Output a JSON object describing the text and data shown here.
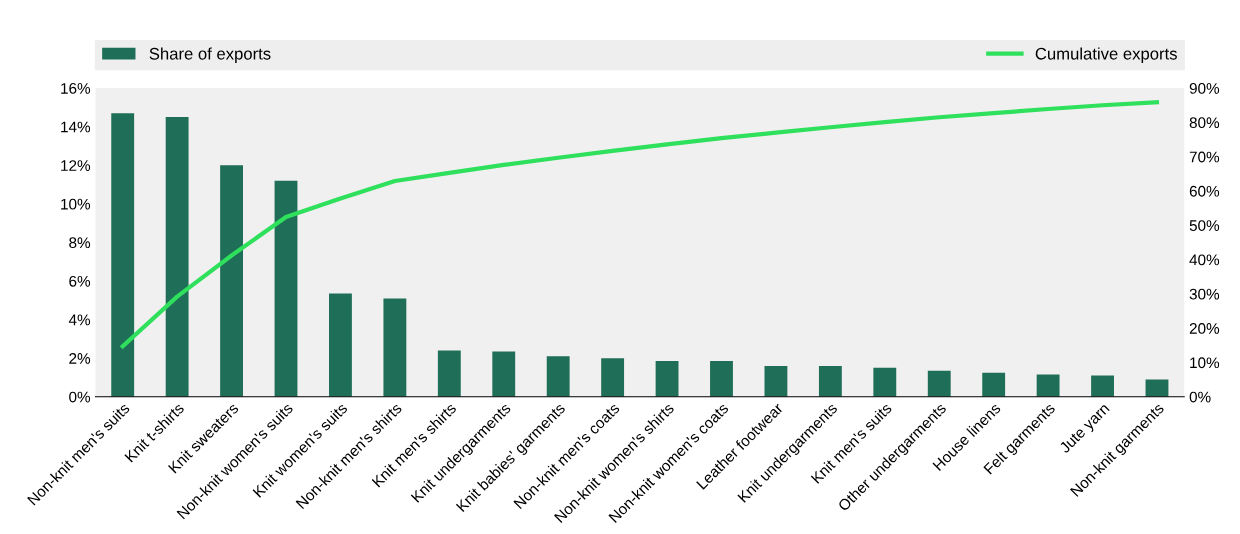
{
  "chart_data": {
    "type": "bar",
    "categories": [
      "Non-knit men's suits",
      "Knit t-shirts",
      "Knit sweaters",
      "Non-knit women's suits",
      "Knit women's suits",
      "Non-knit men's shirts",
      "Knit men's shirts",
      "Knit undergarments",
      "Knit babies' garments",
      "Non-knit men's coats",
      "Non-knit women's shirts",
      "Non-knit women's coats",
      "Leather footwear",
      "Knit undergarments",
      "Knit men's suits",
      "Other undergarments",
      "House linens",
      "Felt garments",
      "Jute yarn",
      "Non-knit garments"
    ],
    "series": [
      {
        "name": "Share of exports",
        "color": "#1f6e57",
        "values": [
          14.7,
          14.5,
          12.0,
          11.2,
          5.35,
          5.1,
          2.4,
          2.35,
          2.1,
          2.0,
          1.85,
          1.85,
          1.6,
          1.6,
          1.5,
          1.35,
          1.25,
          1.15,
          1.1,
          0.9
        ]
      },
      {
        "name": "Cumulative exports",
        "type": "line",
        "axis": "y2",
        "color": "#2ee05c",
        "values": [
          14.7,
          29.2,
          41.2,
          52.4,
          57.8,
          62.9,
          65.3,
          67.6,
          69.7,
          71.7,
          73.6,
          75.4,
          77.0,
          78.6,
          80.1,
          81.5,
          82.7,
          83.9,
          85.0,
          85.9
        ]
      }
    ],
    "ylim": [
      0,
      16
    ],
    "yticks": [
      {
        "value": 0,
        "label": "0%"
      },
      {
        "value": 2,
        "label": "2%"
      },
      {
        "value": 4,
        "label": "4%"
      },
      {
        "value": 6,
        "label": "6%"
      },
      {
        "value": 8,
        "label": "8%"
      },
      {
        "value": 10,
        "label": "10%"
      },
      {
        "value": 12,
        "label": "12%"
      },
      {
        "value": 14,
        "label": "14%"
      },
      {
        "value": 16,
        "label": "16%"
      }
    ],
    "y2lim": [
      0,
      90
    ],
    "y2ticks": [
      {
        "value": 0,
        "label": "0%"
      },
      {
        "value": 10,
        "label": "10%"
      },
      {
        "value": 20,
        "label": "20%"
      },
      {
        "value": 30,
        "label": "30%"
      },
      {
        "value": 40,
        "label": "40%"
      },
      {
        "value": 50,
        "label": "50%"
      },
      {
        "value": 60,
        "label": "60%"
      },
      {
        "value": 70,
        "label": "70%"
      },
      {
        "value": 80,
        "label": "80%"
      },
      {
        "value": 90,
        "label": "90%"
      }
    ],
    "legend": "top",
    "grid": false
  }
}
